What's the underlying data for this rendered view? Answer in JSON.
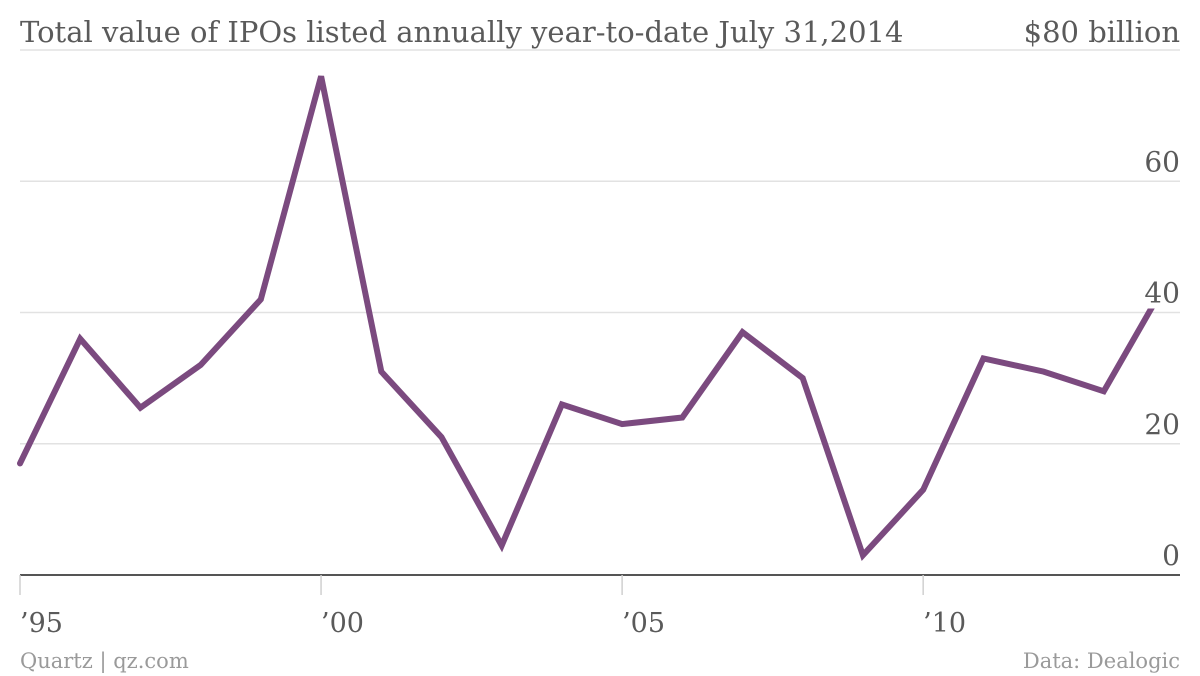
{
  "chart_data": {
    "type": "line",
    "title": "Total value of IPOs listed annually year-to-date July 31,2014",
    "unit_label": "$80 billion",
    "x": [
      1995,
      1996,
      1997,
      1998,
      1999,
      2000,
      2001,
      2002,
      2003,
      2004,
      2005,
      2006,
      2007,
      2008,
      2009,
      2010,
      2011,
      2012,
      2013,
      2014
    ],
    "series": [
      {
        "values": [
          17,
          36,
          25.5,
          32,
          42,
          76,
          31,
          21,
          4.5,
          26,
          23,
          24,
          37,
          30,
          3,
          13,
          33,
          31,
          28,
          44
        ]
      }
    ],
    "ylim": [
      0,
      80
    ],
    "yticks": [
      0,
      20,
      40,
      60
    ],
    "xticks": [
      1995,
      2000,
      2005,
      2010
    ],
    "xtick_labels": [
      "’95",
      "’00",
      "’05",
      "’10"
    ],
    "grid": true,
    "colors": {
      "line": "#7b4a7f",
      "grid": "#e2e2e2",
      "axis": "#555555",
      "text": "#5a5a5a",
      "footer": "#9a9a9a"
    }
  },
  "footer": {
    "source_left": "Quartz | qz.com",
    "source_right": "Data: Dealogic"
  }
}
